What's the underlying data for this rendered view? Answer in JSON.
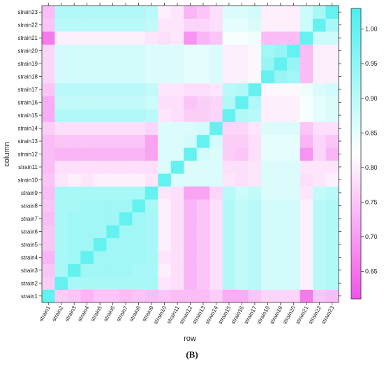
{
  "panel_label": "(B)",
  "chart_data": {
    "type": "heatmap",
    "xlabel": "row",
    "ylabel": "column",
    "labels": [
      "strain1",
      "strain2",
      "strain3",
      "strain4",
      "strain5",
      "strain6",
      "strain7",
      "strain8",
      "strain9",
      "strain10",
      "strain11",
      "strain12",
      "strain13",
      "strain14",
      "strain15",
      "strain16",
      "strain17",
      "strain18",
      "strain19",
      "strain20",
      "strain21",
      "strain22",
      "strain23"
    ],
    "colorbar": {
      "min": 0.61,
      "max": 1.03,
      "ticks": [
        0.65,
        0.7,
        0.75,
        0.8,
        0.85,
        0.9,
        0.95,
        1.0
      ],
      "tick_labels": [
        "0.65",
        "0.70",
        "0.75",
        "0.80",
        "0.85",
        "0.90",
        "0.95",
        "1.00"
      ],
      "colors": {
        "low": "#f252e8",
        "mid": "#ffffff",
        "high": "#49f0ee"
      },
      "mid_value": 0.82
    },
    "matrix": [
      [
        1.0,
        0.76,
        0.75,
        0.73,
        0.75,
        0.75,
        0.74,
        0.75,
        0.74,
        0.75,
        0.74,
        0.74,
        0.74,
        0.76,
        0.72,
        0.72,
        0.75,
        0.77,
        0.77,
        0.77,
        0.66,
        0.75,
        0.74
      ],
      [
        0.76,
        1.0,
        0.92,
        0.92,
        0.92,
        0.92,
        0.92,
        0.92,
        0.92,
        0.79,
        0.78,
        0.73,
        0.75,
        0.78,
        0.91,
        0.89,
        0.9,
        0.87,
        0.87,
        0.87,
        0.8,
        0.9,
        0.91
      ],
      [
        0.75,
        0.92,
        1.0,
        0.93,
        0.93,
        0.93,
        0.93,
        0.92,
        0.92,
        0.8,
        0.78,
        0.73,
        0.75,
        0.78,
        0.91,
        0.89,
        0.9,
        0.87,
        0.87,
        0.87,
        0.8,
        0.9,
        0.91
      ],
      [
        0.73,
        0.92,
        0.93,
        1.0,
        0.93,
        0.93,
        0.93,
        0.93,
        0.92,
        0.79,
        0.78,
        0.73,
        0.75,
        0.78,
        0.91,
        0.89,
        0.9,
        0.87,
        0.87,
        0.87,
        0.8,
        0.9,
        0.91
      ],
      [
        0.75,
        0.92,
        0.93,
        0.93,
        1.0,
        0.93,
        0.93,
        0.93,
        0.92,
        0.8,
        0.78,
        0.73,
        0.75,
        0.78,
        0.91,
        0.89,
        0.9,
        0.87,
        0.87,
        0.87,
        0.8,
        0.9,
        0.91
      ],
      [
        0.75,
        0.92,
        0.93,
        0.93,
        0.93,
        1.0,
        0.93,
        0.93,
        0.92,
        0.8,
        0.78,
        0.73,
        0.75,
        0.78,
        0.91,
        0.89,
        0.9,
        0.87,
        0.87,
        0.87,
        0.8,
        0.9,
        0.91
      ],
      [
        0.74,
        0.92,
        0.93,
        0.93,
        0.93,
        0.93,
        1.0,
        0.93,
        0.92,
        0.8,
        0.78,
        0.73,
        0.75,
        0.78,
        0.91,
        0.89,
        0.9,
        0.87,
        0.87,
        0.87,
        0.8,
        0.9,
        0.91
      ],
      [
        0.75,
        0.92,
        0.92,
        0.93,
        0.93,
        0.93,
        0.93,
        1.0,
        0.92,
        0.8,
        0.78,
        0.73,
        0.75,
        0.78,
        0.91,
        0.89,
        0.9,
        0.87,
        0.87,
        0.87,
        0.8,
        0.9,
        0.91
      ],
      [
        0.74,
        0.92,
        0.92,
        0.92,
        0.92,
        0.92,
        0.92,
        0.92,
        1.0,
        0.79,
        0.78,
        0.71,
        0.71,
        0.77,
        0.9,
        0.88,
        0.89,
        0.86,
        0.86,
        0.86,
        0.79,
        0.89,
        0.9
      ],
      [
        0.75,
        0.79,
        0.8,
        0.79,
        0.8,
        0.8,
        0.8,
        0.8,
        0.79,
        1.0,
        0.86,
        0.86,
        0.86,
        0.86,
        0.79,
        0.78,
        0.79,
        0.86,
        0.86,
        0.86,
        0.78,
        0.79,
        0.8
      ],
      [
        0.74,
        0.78,
        0.78,
        0.78,
        0.78,
        0.78,
        0.78,
        0.78,
        0.78,
        0.86,
        1.0,
        0.86,
        0.86,
        0.86,
        0.78,
        0.78,
        0.79,
        0.86,
        0.86,
        0.86,
        0.79,
        0.79,
        0.79
      ],
      [
        0.74,
        0.73,
        0.73,
        0.73,
        0.73,
        0.73,
        0.73,
        0.73,
        0.71,
        0.86,
        0.86,
        1.0,
        0.87,
        0.86,
        0.76,
        0.75,
        0.78,
        0.85,
        0.85,
        0.85,
        0.69,
        0.77,
        0.73
      ],
      [
        0.74,
        0.75,
        0.75,
        0.75,
        0.75,
        0.75,
        0.75,
        0.75,
        0.71,
        0.86,
        0.86,
        0.87,
        1.0,
        0.87,
        0.76,
        0.76,
        0.78,
        0.85,
        0.85,
        0.85,
        0.73,
        0.77,
        0.75
      ],
      [
        0.76,
        0.78,
        0.78,
        0.78,
        0.78,
        0.78,
        0.78,
        0.78,
        0.77,
        0.86,
        0.86,
        0.86,
        0.87,
        1.0,
        0.77,
        0.77,
        0.79,
        0.86,
        0.86,
        0.86,
        0.75,
        0.78,
        0.78
      ],
      [
        0.72,
        0.91,
        0.91,
        0.91,
        0.91,
        0.91,
        0.91,
        0.91,
        0.9,
        0.79,
        0.78,
        0.76,
        0.76,
        0.77,
        1.0,
        0.91,
        0.9,
        0.8,
        0.8,
        0.8,
        0.83,
        0.85,
        0.86
      ],
      [
        0.72,
        0.89,
        0.89,
        0.89,
        0.89,
        0.89,
        0.89,
        0.89,
        0.88,
        0.78,
        0.78,
        0.75,
        0.76,
        0.77,
        0.91,
        1.0,
        0.91,
        0.8,
        0.8,
        0.8,
        0.83,
        0.85,
        0.86
      ],
      [
        0.75,
        0.9,
        0.9,
        0.9,
        0.9,
        0.9,
        0.9,
        0.9,
        0.89,
        0.79,
        0.79,
        0.78,
        0.78,
        0.79,
        0.9,
        0.91,
        1.0,
        0.81,
        0.81,
        0.81,
        0.84,
        0.86,
        0.87
      ],
      [
        0.77,
        0.87,
        0.87,
        0.87,
        0.87,
        0.87,
        0.87,
        0.87,
        0.86,
        0.86,
        0.86,
        0.85,
        0.85,
        0.86,
        0.8,
        0.8,
        0.81,
        1.0,
        0.94,
        0.93,
        0.74,
        0.8,
        0.8
      ],
      [
        0.77,
        0.87,
        0.87,
        0.87,
        0.87,
        0.87,
        0.87,
        0.87,
        0.86,
        0.86,
        0.86,
        0.85,
        0.85,
        0.86,
        0.8,
        0.8,
        0.81,
        0.94,
        1.0,
        0.94,
        0.74,
        0.8,
        0.8
      ],
      [
        0.77,
        0.87,
        0.87,
        0.87,
        0.87,
        0.87,
        0.87,
        0.87,
        0.86,
        0.86,
        0.86,
        0.85,
        0.85,
        0.86,
        0.8,
        0.8,
        0.81,
        0.93,
        0.94,
        1.0,
        0.74,
        0.8,
        0.8
      ],
      [
        0.66,
        0.8,
        0.8,
        0.8,
        0.8,
        0.8,
        0.8,
        0.8,
        0.79,
        0.78,
        0.79,
        0.69,
        0.73,
        0.75,
        0.83,
        0.83,
        0.84,
        0.74,
        0.74,
        0.74,
        1.0,
        0.88,
        0.88
      ],
      [
        0.75,
        0.9,
        0.9,
        0.9,
        0.9,
        0.9,
        0.9,
        0.9,
        0.89,
        0.79,
        0.79,
        0.77,
        0.77,
        0.78,
        0.85,
        0.85,
        0.86,
        0.8,
        0.8,
        0.8,
        0.88,
        1.0,
        0.92
      ],
      [
        0.74,
        0.91,
        0.91,
        0.91,
        0.91,
        0.91,
        0.91,
        0.91,
        0.9,
        0.8,
        0.79,
        0.73,
        0.75,
        0.78,
        0.86,
        0.86,
        0.87,
        0.8,
        0.8,
        0.8,
        0.88,
        0.92,
        1.0
      ]
    ]
  }
}
